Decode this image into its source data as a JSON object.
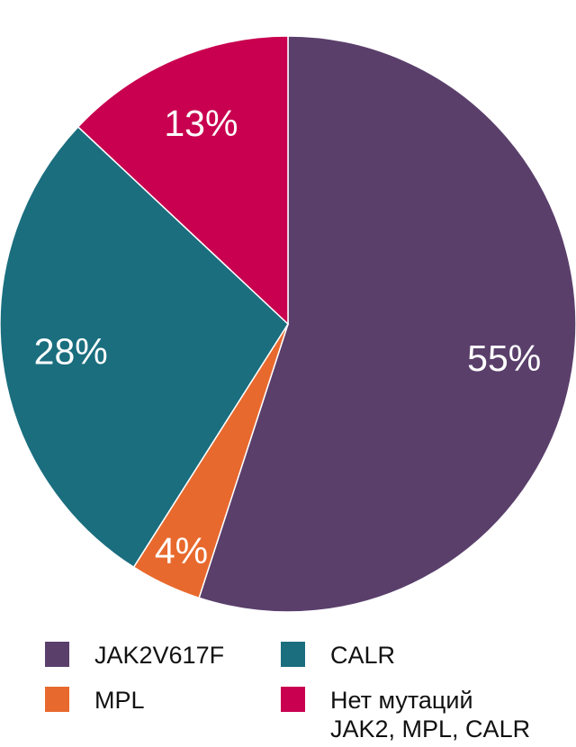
{
  "chart_data": {
    "type": "pie",
    "title": "",
    "start_angle": "top",
    "direction": "clockwise",
    "slices": [
      {
        "name": "JAK2V617F",
        "value": 55,
        "label": "55%",
        "color": "#5a3f6b"
      },
      {
        "name": "MPL",
        "value": 4,
        "label": "4%",
        "color": "#e8692d"
      },
      {
        "name": "CALR",
        "value": 28,
        "label": "28%",
        "color": "#1a6e7e"
      },
      {
        "name": "Нет мутаций\nJAK2, MPL, CALR",
        "value": 13,
        "label": "13%",
        "color": "#c8004f"
      }
    ],
    "legend_placement": "bottom"
  }
}
